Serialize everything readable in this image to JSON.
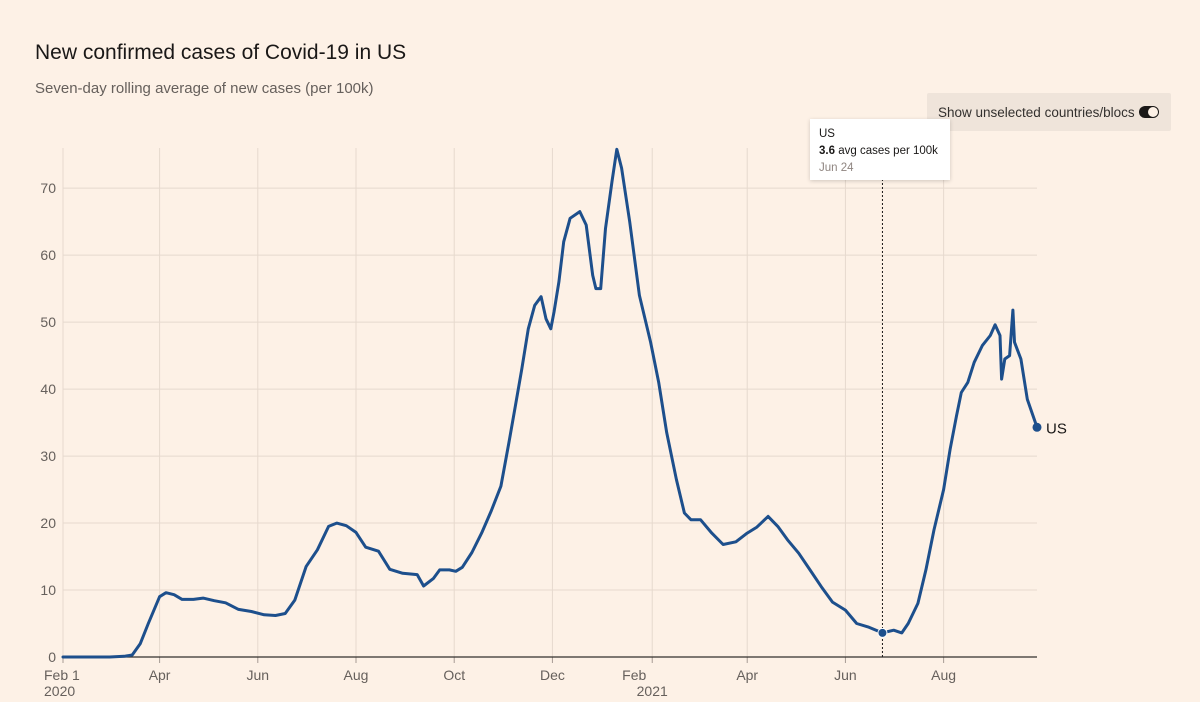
{
  "header": {
    "title": "New confirmed cases of Covid-19 in US",
    "subtitle": "Seven-day rolling average of new cases (per 100k)"
  },
  "controls": {
    "toggle_label": "Show unselected countries/blocs",
    "toggle_on": true
  },
  "tooltip": {
    "series": "US",
    "value": "3.6",
    "unit_text": "avg cases per 100k",
    "date": "Jun 24"
  },
  "colors": {
    "line": "#1d4f8c",
    "background": "#fdf1e6",
    "grid": "#e6d9ce"
  },
  "chart_data": {
    "type": "line",
    "title": "New confirmed cases of Covid-19 in US",
    "subtitle": "Seven-day rolling average of new cases (per 100k)",
    "xlabel": "",
    "ylabel": "",
    "ylim": [
      0,
      76
    ],
    "yticks": [
      0,
      10,
      20,
      30,
      40,
      50,
      60,
      70
    ],
    "xticks": [
      {
        "date": "2020-02-01",
        "label": "Feb 1",
        "year": "2020"
      },
      {
        "date": "2020-04-01",
        "label": "Apr"
      },
      {
        "date": "2020-06-01",
        "label": "Jun"
      },
      {
        "date": "2020-08-01",
        "label": "Aug"
      },
      {
        "date": "2020-10-01",
        "label": "Oct"
      },
      {
        "date": "2020-12-01",
        "label": "Dec"
      },
      {
        "date": "2021-02-01",
        "label": "Feb",
        "year": "2021"
      },
      {
        "date": "2021-04-01",
        "label": "Apr"
      },
      {
        "date": "2021-06-01",
        "label": "Jun"
      },
      {
        "date": "2021-08-01",
        "label": "Aug"
      }
    ],
    "xlim": [
      "2020-02-01",
      "2021-09-28"
    ],
    "grid": true,
    "legend": "end-label",
    "highlight": {
      "date": "2021-06-24",
      "value": 3.6
    },
    "series": [
      {
        "name": "US",
        "end_label": "US",
        "points": [
          [
            "2020-02-01",
            0
          ],
          [
            "2020-03-01",
            0
          ],
          [
            "2020-03-10",
            0.1
          ],
          [
            "2020-03-15",
            0.3
          ],
          [
            "2020-03-20",
            2
          ],
          [
            "2020-03-25",
            5
          ],
          [
            "2020-04-01",
            9
          ],
          [
            "2020-04-05",
            9.6
          ],
          [
            "2020-04-10",
            9.3
          ],
          [
            "2020-04-15",
            8.6
          ],
          [
            "2020-04-22",
            8.6
          ],
          [
            "2020-04-28",
            8.8
          ],
          [
            "2020-05-05",
            8.4
          ],
          [
            "2020-05-12",
            8.1
          ],
          [
            "2020-05-20",
            7.1
          ],
          [
            "2020-05-28",
            6.8
          ],
          [
            "2020-06-05",
            6.3
          ],
          [
            "2020-06-12",
            6.2
          ],
          [
            "2020-06-18",
            6.5
          ],
          [
            "2020-06-24",
            8.5
          ],
          [
            "2020-07-01",
            13.5
          ],
          [
            "2020-07-08",
            16
          ],
          [
            "2020-07-15",
            19.5
          ],
          [
            "2020-07-20",
            20
          ],
          [
            "2020-07-26",
            19.6
          ],
          [
            "2020-08-01",
            18.6
          ],
          [
            "2020-08-07",
            16.4
          ],
          [
            "2020-08-15",
            15.8
          ],
          [
            "2020-08-22",
            13.1
          ],
          [
            "2020-08-30",
            12.5
          ],
          [
            "2020-09-08",
            12.3
          ],
          [
            "2020-09-12",
            10.6
          ],
          [
            "2020-09-18",
            11.7
          ],
          [
            "2020-09-22",
            13
          ],
          [
            "2020-09-28",
            13
          ],
          [
            "2020-10-02",
            12.8
          ],
          [
            "2020-10-06",
            13.4
          ],
          [
            "2020-10-12",
            15.6
          ],
          [
            "2020-10-18",
            18.5
          ],
          [
            "2020-10-24",
            21.8
          ],
          [
            "2020-10-30",
            25.5
          ],
          [
            "2020-11-04",
            32
          ],
          [
            "2020-11-08",
            37.5
          ],
          [
            "2020-11-12",
            43
          ],
          [
            "2020-11-16",
            49
          ],
          [
            "2020-11-20",
            52.5
          ],
          [
            "2020-11-24",
            53.8
          ],
          [
            "2020-11-27",
            50.5
          ],
          [
            "2020-11-30",
            49
          ],
          [
            "2020-12-02",
            51.5
          ],
          [
            "2020-12-05",
            56
          ],
          [
            "2020-12-08",
            62
          ],
          [
            "2020-12-12",
            65.5
          ],
          [
            "2020-12-18",
            66.5
          ],
          [
            "2020-12-22",
            64.5
          ],
          [
            "2020-12-26",
            57
          ],
          [
            "2020-12-28",
            55
          ],
          [
            "2020-12-31",
            55
          ],
          [
            "2021-01-03",
            64
          ],
          [
            "2021-01-07",
            71
          ],
          [
            "2021-01-10",
            75.8
          ],
          [
            "2021-01-13",
            73
          ],
          [
            "2021-01-18",
            65
          ],
          [
            "2021-01-24",
            54
          ],
          [
            "2021-01-31",
            47
          ],
          [
            "2021-02-05",
            41
          ],
          [
            "2021-02-10",
            33.5
          ],
          [
            "2021-02-16",
            26.5
          ],
          [
            "2021-02-21",
            21.5
          ],
          [
            "2021-02-25",
            20.5
          ],
          [
            "2021-03-03",
            20.5
          ],
          [
            "2021-03-10",
            18.5
          ],
          [
            "2021-03-17",
            16.8
          ],
          [
            "2021-03-25",
            17.2
          ],
          [
            "2021-04-01",
            18.5
          ],
          [
            "2021-04-07",
            19.4
          ],
          [
            "2021-04-14",
            21
          ],
          [
            "2021-04-20",
            19.5
          ],
          [
            "2021-04-26",
            17.5
          ],
          [
            "2021-05-03",
            15.5
          ],
          [
            "2021-05-10",
            13
          ],
          [
            "2021-05-17",
            10.5
          ],
          [
            "2021-05-24",
            8.2
          ],
          [
            "2021-06-01",
            7
          ],
          [
            "2021-06-08",
            5
          ],
          [
            "2021-06-15",
            4.5
          ],
          [
            "2021-06-24",
            3.6
          ],
          [
            "2021-07-01",
            4
          ],
          [
            "2021-07-06",
            3.6
          ],
          [
            "2021-07-10",
            5
          ],
          [
            "2021-07-16",
            8
          ],
          [
            "2021-07-21",
            13
          ],
          [
            "2021-07-26",
            19
          ],
          [
            "2021-08-01",
            25
          ],
          [
            "2021-08-05",
            31
          ],
          [
            "2021-08-09",
            36
          ],
          [
            "2021-08-12",
            39.5
          ],
          [
            "2021-08-16",
            41
          ],
          [
            "2021-08-20",
            44
          ],
          [
            "2021-08-25",
            46.5
          ],
          [
            "2021-08-30",
            48
          ],
          [
            "2021-09-02",
            49.6
          ],
          [
            "2021-09-05",
            48
          ],
          [
            "2021-09-06",
            41.5
          ],
          [
            "2021-09-08",
            44.5
          ],
          [
            "2021-09-11",
            45
          ],
          [
            "2021-09-13",
            51.8
          ],
          [
            "2021-09-14",
            47
          ],
          [
            "2021-09-18",
            44.5
          ],
          [
            "2021-09-22",
            38.5
          ],
          [
            "2021-09-28",
            34.3
          ]
        ]
      }
    ]
  }
}
